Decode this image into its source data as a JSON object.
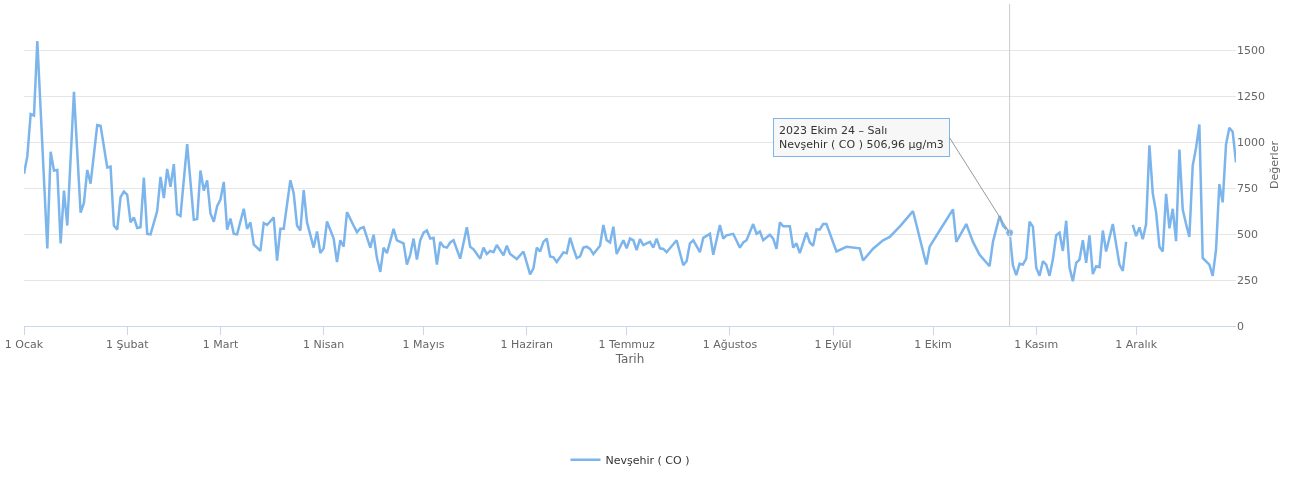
{
  "chart_data": {
    "type": "line",
    "xlabel": "Tarih",
    "ylabel": "Değerler",
    "x": [
      "2023-01-01",
      "2023-01-02",
      "2023-01-03",
      "2023-01-04",
      "2023-01-05",
      "2023-01-08",
      "2023-01-09",
      "2023-01-10",
      "2023-01-11",
      "2023-01-12",
      "2023-01-13",
      "2023-01-14",
      "2023-01-16",
      "2023-01-18",
      "2023-01-19",
      "2023-01-20",
      "2023-01-21",
      "2023-01-23",
      "2023-01-24",
      "2023-01-26",
      "2023-01-27",
      "2023-01-28",
      "2023-01-29",
      "2023-01-30",
      "2023-01-31",
      "2023-02-01",
      "2023-02-02",
      "2023-02-03",
      "2023-02-04",
      "2023-02-05",
      "2023-02-06",
      "2023-02-07",
      "2023-02-08",
      "2023-02-10",
      "2023-02-11",
      "2023-02-12",
      "2023-02-13",
      "2023-02-14",
      "2023-02-15",
      "2023-02-16",
      "2023-02-17",
      "2023-02-19",
      "2023-02-21",
      "2023-02-22",
      "2023-02-23",
      "2023-02-24",
      "2023-02-25",
      "2023-02-26",
      "2023-02-27",
      "2023-02-28",
      "2023-03-01",
      "2023-03-02",
      "2023-03-03",
      "2023-03-04",
      "2023-03-05",
      "2023-03-06",
      "2023-03-08",
      "2023-03-09",
      "2023-03-10",
      "2023-03-11",
      "2023-03-13",
      "2023-03-14",
      "2023-03-15",
      "2023-03-17",
      "2023-03-18",
      "2023-03-19",
      "2023-03-20",
      "2023-03-22",
      "2023-03-23",
      "2023-03-24",
      "2023-03-25",
      "2023-03-26",
      "2023-03-27",
      "2023-03-29",
      "2023-03-30",
      "2023-03-31",
      "2023-04-01",
      "2023-04-02",
      "2023-04-04",
      "2023-04-05",
      "2023-04-06",
      "2023-04-07",
      "2023-04-08",
      "2023-04-10",
      "2023-04-11",
      "2023-04-12",
      "2023-04-13",
      "2023-04-15",
      "2023-04-16",
      "2023-04-17",
      "2023-04-18",
      "2023-04-19",
      "2023-04-20",
      "2023-04-22",
      "2023-04-23",
      "2023-04-25",
      "2023-04-26",
      "2023-04-27",
      "2023-04-28",
      "2023-04-29",
      "2023-04-30",
      "2023-05-01",
      "2023-05-02",
      "2023-05-03",
      "2023-05-04",
      "2023-05-05",
      "2023-05-06",
      "2023-05-07",
      "2023-05-08",
      "2023-05-09",
      "2023-05-10",
      "2023-05-12",
      "2023-05-14",
      "2023-05-15",
      "2023-05-16",
      "2023-05-18",
      "2023-05-19",
      "2023-05-20",
      "2023-05-21",
      "2023-05-22",
      "2023-05-23",
      "2023-05-25",
      "2023-05-26",
      "2023-05-27",
      "2023-05-29",
      "2023-05-31",
      "2023-06-01",
      "2023-06-02",
      "2023-06-03",
      "2023-06-04",
      "2023-06-05",
      "2023-06-06",
      "2023-06-07",
      "2023-06-08",
      "2023-06-09",
      "2023-06-10",
      "2023-06-12",
      "2023-06-13",
      "2023-06-14",
      "2023-06-15",
      "2023-06-16",
      "2023-06-17",
      "2023-06-18",
      "2023-06-19",
      "2023-06-20",
      "2023-06-21",
      "2023-06-23",
      "2023-06-24",
      "2023-06-25",
      "2023-06-26",
      "2023-06-27",
      "2023-06-28",
      "2023-06-30",
      "2023-07-01",
      "2023-07-02",
      "2023-07-03",
      "2023-07-04",
      "2023-07-05",
      "2023-07-06",
      "2023-07-07",
      "2023-07-08",
      "2023-07-09",
      "2023-07-10",
      "2023-07-11",
      "2023-07-12",
      "2023-07-13",
      "2023-07-16",
      "2023-07-18",
      "2023-07-19",
      "2023-07-20",
      "2023-07-21",
      "2023-07-23",
      "2023-07-24",
      "2023-07-26",
      "2023-07-27",
      "2023-07-29",
      "2023-07-30",
      "2023-07-31",
      "2023-08-02",
      "2023-08-04",
      "2023-08-05",
      "2023-08-06",
      "2023-08-08",
      "2023-08-09",
      "2023-08-10",
      "2023-08-11",
      "2023-08-13",
      "2023-08-14",
      "2023-08-15",
      "2023-08-16",
      "2023-08-17",
      "2023-08-19",
      "2023-08-20",
      "2023-08-21",
      "2023-08-22",
      "2023-08-24",
      "2023-08-25",
      "2023-08-26",
      "2023-08-27",
      "2023-08-28",
      "2023-08-29",
      "2023-08-30",
      "2023-09-02",
      "2023-09-05",
      "2023-09-09",
      "2023-09-10",
      "2023-09-13",
      "2023-09-16",
      "2023-09-18",
      "2023-09-21",
      "2023-09-25",
      "2023-09-29",
      "2023-09-30",
      "2023-10-03",
      "2023-10-07",
      "2023-10-08",
      "2023-10-11",
      "2023-10-13",
      "2023-10-15",
      "2023-10-18",
      "2023-10-19",
      "2023-10-20",
      "2023-10-21",
      "2023-10-22",
      "2023-10-24",
      "2023-10-25",
      "2023-10-26",
      "2023-10-27",
      "2023-10-28",
      "2023-10-29",
      "2023-10-30",
      "2023-10-31",
      "2023-11-01",
      "2023-11-02",
      "2023-11-03",
      "2023-11-04",
      "2023-11-05",
      "2023-11-06",
      "2023-11-07",
      "2023-11-08",
      "2023-11-09",
      "2023-11-10",
      "2023-11-11",
      "2023-11-12",
      "2023-11-13",
      "2023-11-14",
      "2023-11-15",
      "2023-11-16",
      "2023-11-17",
      "2023-11-18",
      "2023-11-19",
      "2023-11-20",
      "2023-11-21",
      "2023-11-22",
      "2023-11-24",
      "2023-11-26",
      "2023-11-27",
      "2023-11-28",
      "2023-11-29",
      "2023-11-30",
      "2023-12-01",
      "2023-12-02",
      "2023-12-03",
      "2023-12-04",
      "2023-12-05",
      "2023-12-06",
      "2023-12-07",
      "2023-12-08",
      "2023-12-09",
      "2023-12-10",
      "2023-12-11",
      "2023-12-12",
      "2023-12-13",
      "2023-12-14",
      "2023-12-15",
      "2023-12-16",
      "2023-12-17",
      "2023-12-18",
      "2023-12-19",
      "2023-12-20",
      "2023-12-21",
      "2023-12-23",
      "2023-12-24",
      "2023-12-25",
      "2023-12-26",
      "2023-12-27",
      "2023-12-28",
      "2023-12-29",
      "2023-12-30",
      "2023-12-31"
    ],
    "series": [
      {
        "name": "Nevşehir ( CO )",
        "color": "#7cb5ec",
        "values": [
          827,
          923,
          1152,
          1144,
          1549,
          422,
          947,
          845,
          848,
          449,
          736,
          546,
          1273,
          616,
          669,
          848,
          774,
          1092,
          1088,
          862,
          866,
          546,
          524,
          700,
          731,
          713,
          563,
          590,
          533,
          537,
          806,
          501,
          498,
          625,
          810,
          695,
          854,
          757,
          880,
          607,
          598,
          989,
          577,
          581,
          845,
          736,
          792,
          612,
          567,
          651,
          687,
          783,
          524,
          584,
          501,
          498,
          637,
          528,
          563,
          443,
          408,
          560,
          549,
          590,
          355,
          528,
          528,
          792,
          721,
          546,
          519,
          739,
          563,
          426,
          514,
          396,
          422,
          568,
          475,
          348,
          466,
          431,
          619,
          545,
          510,
          531,
          537,
          426,
          496,
          369,
          294,
          426,
          396,
          528,
          466,
          449,
          334,
          387,
          475,
          361,
          466,
          507,
          519,
          475,
          479,
          334,
          457,
          431,
          426,
          454,
          466,
          366,
          537,
          431,
          417,
          366,
          426,
          391,
          408,
          401,
          440,
          384,
          436,
          391,
          364,
          405,
          343,
          281,
          313,
          426,
          405,
          457,
          475,
          378,
          373,
          348,
          400,
          396,
          480,
          422,
          369,
          378,
          426,
          431,
          419,
          391,
          436,
          549,
          466,
          454,
          540,
          391,
          466,
          422,
          475,
          466,
          413,
          472,
          440,
          449,
          457,
          426,
          475,
          422,
          419,
          401,
          466,
          330,
          352,
          449,
          466,
          401,
          479,
          501,
          387,
          549,
          475,
          493,
          501,
          426,
          454,
          466,
          554,
          501,
          514,
          466,
          496,
          475,
          419,
          563,
          542,
          542,
          426,
          449,
          396,
          507,
          454,
          436,
          524,
          524,
          554,
          554,
          405,
          430,
          422,
          356,
          420,
          466,
          484,
          540,
          624,
          334,
          431,
          519,
          634,
          457,
          554,
          457,
          387,
          325,
          457,
          528,
          598,
          546,
          506.96,
          330,
          276,
          338,
          334,
          366,
          567,
          540,
          317,
          273,
          352,
          334,
          273,
          361,
          493,
          507,
          408,
          572,
          317,
          243,
          343,
          361,
          466,
          343,
          493,
          282,
          325,
          320,
          519,
          405,
          554,
          334,
          299,
          457,
          null,
          549,
          489,
          536,
          472,
          554,
          982,
          721,
          619,
          431,
          405,
          718,
          531,
          637,
          461,
          959,
          633,
          554,
          484,
          871,
          968,
          1095,
          370,
          334,
          273,
          413,
          771,
          672,
          986,
          1077,
          1056,
          889
        ]
      }
    ],
    "xlim": [
      "2023-01-01",
      "2023-12-31"
    ],
    "xticks": [
      {
        "value": "2023-01-01",
        "label": "1 Ocak"
      },
      {
        "value": "2023-02-01",
        "label": "1 Şubat"
      },
      {
        "value": "2023-03-01",
        "label": "1 Mart"
      },
      {
        "value": "2023-04-01",
        "label": "1 Nisan"
      },
      {
        "value": "2023-05-01",
        "label": "1 Mayıs"
      },
      {
        "value": "2023-06-01",
        "label": "1 Haziran"
      },
      {
        "value": "2023-07-01",
        "label": "1 Temmuz"
      },
      {
        "value": "2023-08-01",
        "label": "1 Ağustos"
      },
      {
        "value": "2023-09-01",
        "label": "1 Eylül"
      },
      {
        "value": "2023-10-01",
        "label": "1 Ekim"
      },
      {
        "value": "2023-11-01",
        "label": "1 Kasım"
      },
      {
        "value": "2023-12-01",
        "label": "1 Aralık"
      }
    ],
    "ylim": [
      0,
      1750
    ],
    "yticks": [
      0,
      250,
      500,
      750,
      1000,
      1250,
      1500
    ],
    "ref_lines": [
      {
        "axis": "x",
        "value": "2023-10-24",
        "color": "#cccccc"
      }
    ],
    "annotations": [
      {
        "text": "2023 Ekim 24 – Salı\nNevşehir ( CO ) 506,96 μg/m3",
        "x": "2023-10-24",
        "y": 506.96
      }
    ],
    "grid": "y",
    "legend": "bottom",
    "marker": "none",
    "line_style": "solid"
  }
}
